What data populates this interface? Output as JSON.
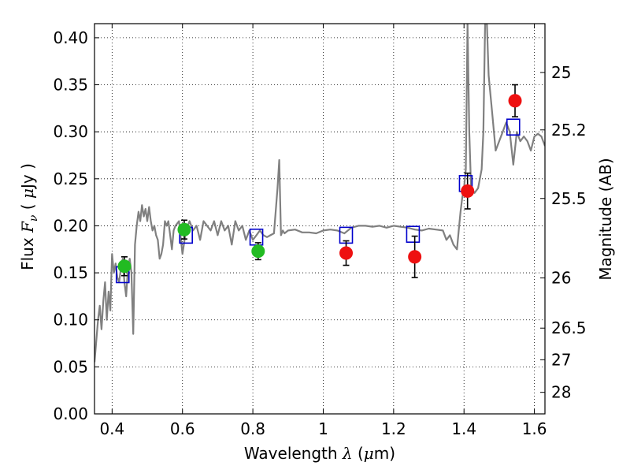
{
  "chart_data": {
    "type": "scatter",
    "title": "",
    "xlabel": "Wavelength  λ (μm)",
    "ylabel": "Flux  F_ν ( μJy )",
    "y2label": "Magnitude (AB)",
    "xlim": [
      0.35,
      1.63
    ],
    "ylim": [
      0.0,
      0.415
    ],
    "grid": true,
    "x_ticks": [
      {
        "v": 0.4,
        "label": "0.4"
      },
      {
        "v": 0.6,
        "label": "0.6"
      },
      {
        "v": 0.8,
        "label": "0.8"
      },
      {
        "v": 1.0,
        "label": "1"
      },
      {
        "v": 1.2,
        "label": "1.2"
      },
      {
        "v": 1.4,
        "label": "1.4"
      },
      {
        "v": 1.6,
        "label": "1.6"
      }
    ],
    "y_ticks": [
      {
        "v": 0.0,
        "label": "0.00"
      },
      {
        "v": 0.05,
        "label": "0.05"
      },
      {
        "v": 0.1,
        "label": "0.10"
      },
      {
        "v": 0.15,
        "label": "0.15"
      },
      {
        "v": 0.2,
        "label": "0.20"
      },
      {
        "v": 0.25,
        "label": "0.25"
      },
      {
        "v": 0.3,
        "label": "0.30"
      },
      {
        "v": 0.35,
        "label": "0.35"
      },
      {
        "v": 0.4,
        "label": "0.40"
      }
    ],
    "y2_ticks": [
      {
        "mag": 25,
        "label": "25"
      },
      {
        "mag": 25.2,
        "label": "25.2"
      },
      {
        "mag": 25.5,
        "label": "25.5"
      },
      {
        "mag": 26,
        "label": "26"
      },
      {
        "mag": 26.5,
        "label": "26.5"
      },
      {
        "mag": 27,
        "label": "27"
      },
      {
        "mag": 28,
        "label": "28"
      }
    ],
    "series": [
      {
        "kind": "line",
        "color": "#808080",
        "x": [
          0.35,
          0.36,
          0.365,
          0.37,
          0.375,
          0.38,
          0.385,
          0.39,
          0.395,
          0.4,
          0.405,
          0.41,
          0.415,
          0.42,
          0.425,
          0.43,
          0.435,
          0.44,
          0.445,
          0.45,
          0.455,
          0.46,
          0.465,
          0.47,
          0.475,
          0.48,
          0.485,
          0.49,
          0.495,
          0.5,
          0.505,
          0.51,
          0.515,
          0.52,
          0.525,
          0.53,
          0.535,
          0.54,
          0.545,
          0.55,
          0.555,
          0.56,
          0.565,
          0.57,
          0.575,
          0.58,
          0.59,
          0.6,
          0.61,
          0.62,
          0.63,
          0.64,
          0.65,
          0.66,
          0.67,
          0.68,
          0.69,
          0.7,
          0.71,
          0.72,
          0.73,
          0.74,
          0.75,
          0.76,
          0.77,
          0.78,
          0.79,
          0.8,
          0.81,
          0.82,
          0.83,
          0.84,
          0.85,
          0.86,
          0.87,
          0.875,
          0.88,
          0.885,
          0.89,
          0.9,
          0.92,
          0.94,
          0.96,
          0.98,
          1.0,
          1.02,
          1.04,
          1.06,
          1.08,
          1.1,
          1.12,
          1.14,
          1.16,
          1.18,
          1.2,
          1.22,
          1.24,
          1.26,
          1.28,
          1.3,
          1.32,
          1.34,
          1.35,
          1.36,
          1.37,
          1.38,
          1.385,
          1.39,
          1.395,
          1.4,
          1.405,
          1.41,
          1.415,
          1.42,
          1.43,
          1.44,
          1.45,
          1.455,
          1.46,
          1.465,
          1.47,
          1.48,
          1.49,
          1.5,
          1.51,
          1.52,
          1.53,
          1.54,
          1.55,
          1.56,
          1.57,
          1.58,
          1.59,
          1.6,
          1.61,
          1.62,
          1.63
        ],
        "y": [
          0.055,
          0.1,
          0.115,
          0.09,
          0.12,
          0.14,
          0.1,
          0.13,
          0.11,
          0.17,
          0.15,
          0.16,
          0.145,
          0.14,
          0.155,
          0.165,
          0.14,
          0.125,
          0.155,
          0.165,
          0.15,
          0.085,
          0.18,
          0.2,
          0.215,
          0.205,
          0.222,
          0.21,
          0.218,
          0.205,
          0.22,
          0.205,
          0.195,
          0.2,
          0.19,
          0.185,
          0.165,
          0.17,
          0.18,
          0.205,
          0.2,
          0.205,
          0.19,
          0.175,
          0.195,
          0.2,
          0.205,
          0.17,
          0.195,
          0.205,
          0.195,
          0.2,
          0.185,
          0.205,
          0.2,
          0.195,
          0.205,
          0.19,
          0.205,
          0.195,
          0.2,
          0.18,
          0.205,
          0.195,
          0.2,
          0.185,
          0.195,
          0.185,
          0.19,
          0.195,
          0.19,
          0.188,
          0.19,
          0.192,
          0.24,
          0.27,
          0.19,
          0.195,
          0.192,
          0.195,
          0.196,
          0.193,
          0.193,
          0.192,
          0.195,
          0.196,
          0.195,
          0.192,
          0.198,
          0.2,
          0.2,
          0.199,
          0.2,
          0.198,
          0.2,
          0.199,
          0.198,
          0.196,
          0.195,
          0.197,
          0.196,
          0.195,
          0.185,
          0.19,
          0.18,
          0.175,
          0.195,
          0.215,
          0.23,
          0.24,
          0.26,
          0.415,
          0.3,
          0.24,
          0.235,
          0.24,
          0.26,
          0.3,
          0.415,
          0.415,
          0.36,
          0.32,
          0.28,
          0.29,
          0.3,
          0.31,
          0.3,
          0.265,
          0.3,
          0.29,
          0.295,
          0.29,
          0.28,
          0.295,
          0.298,
          0.295,
          0.285
        ]
      },
      {
        "kind": "squares",
        "color": "#0000cc",
        "x": [
          0.43,
          0.61,
          0.81,
          1.065,
          1.255,
          1.405,
          1.54
        ],
        "y": [
          0.148,
          0.19,
          0.188,
          0.19,
          0.191,
          0.245,
          0.305
        ]
      },
      {
        "kind": "points",
        "x": [
          0.435,
          0.605,
          0.815,
          1.065,
          1.26,
          1.41,
          1.545
        ],
        "y": [
          0.157,
          0.196,
          0.173,
          0.171,
          0.167,
          0.237,
          0.333
        ],
        "err": [
          0.01,
          0.01,
          0.009,
          0.013,
          0.022,
          0.019,
          0.017
        ],
        "colors": [
          "#22bb22",
          "#22bb22",
          "#22bb22",
          "#ee1111",
          "#ee1111",
          "#ee1111",
          "#ee1111"
        ]
      }
    ]
  }
}
